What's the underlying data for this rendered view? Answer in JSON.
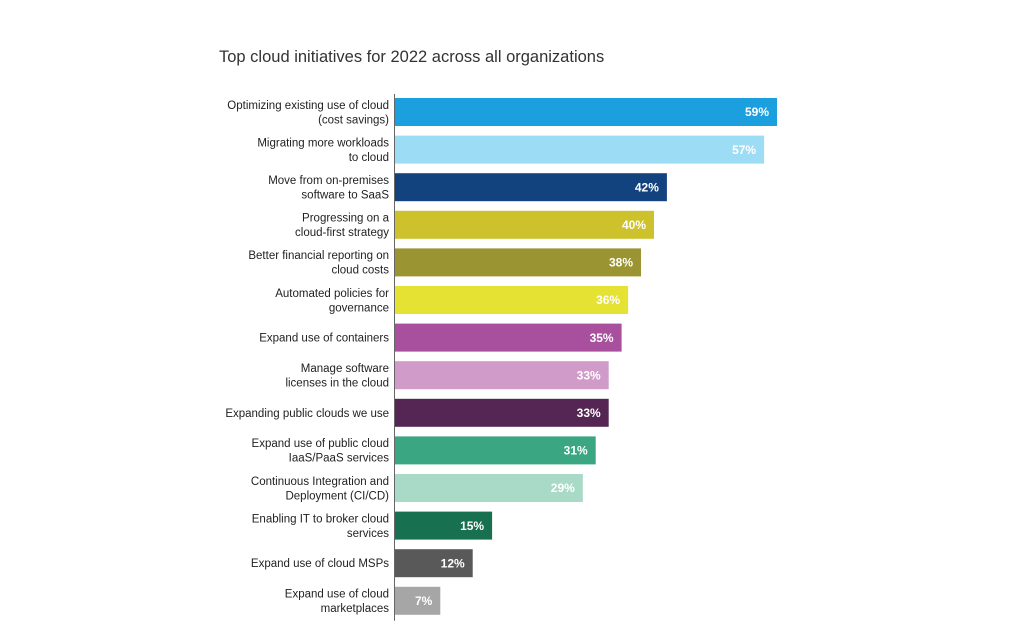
{
  "chart_data": {
    "type": "bar",
    "orientation": "horizontal",
    "title": "Top cloud initiatives for 2022 across all organizations",
    "unit": "%",
    "xlim": [
      0,
      70
    ],
    "grid": false,
    "categories": [
      [
        "Optimizing existing use of cloud",
        "(cost savings)"
      ],
      [
        "Migrating more workloads",
        "to cloud"
      ],
      [
        "Move from on-premises",
        "software to SaaS"
      ],
      [
        "Progressing on a",
        "cloud-first strategy"
      ],
      [
        "Better financial reporting on",
        "cloud costs"
      ],
      [
        "Automated policies for",
        "governance"
      ],
      [
        "Expand use of containers"
      ],
      [
        "Manage software",
        "licenses in the cloud"
      ],
      [
        "Expanding public clouds we use"
      ],
      [
        "Expand use of public cloud",
        "IaaS/PaaS services"
      ],
      [
        "Continuous Integration and",
        "Deployment (CI/CD)"
      ],
      [
        "Enabling IT to broker cloud",
        "services"
      ],
      [
        "Expand use of cloud MSPs"
      ],
      [
        "Expand use of cloud",
        "marketplaces"
      ]
    ],
    "values": [
      59,
      57,
      42,
      40,
      38,
      36,
      35,
      33,
      33,
      31,
      29,
      15,
      12,
      7
    ],
    "value_labels": [
      "59%",
      "57%",
      "42%",
      "40%",
      "38%",
      "36%",
      "35%",
      "33%",
      "33%",
      "31%",
      "29%",
      "15%",
      "12%",
      "7%"
    ],
    "colors": [
      "#1c9fdf",
      "#9ddcf5",
      "#12437f",
      "#cdc22c",
      "#9a9433",
      "#e5e233",
      "#a84f9e",
      "#d09bc9",
      "#552653",
      "#3aa782",
      "#a9d9c7",
      "#17704f",
      "#595959",
      "#a6a6a6"
    ]
  }
}
